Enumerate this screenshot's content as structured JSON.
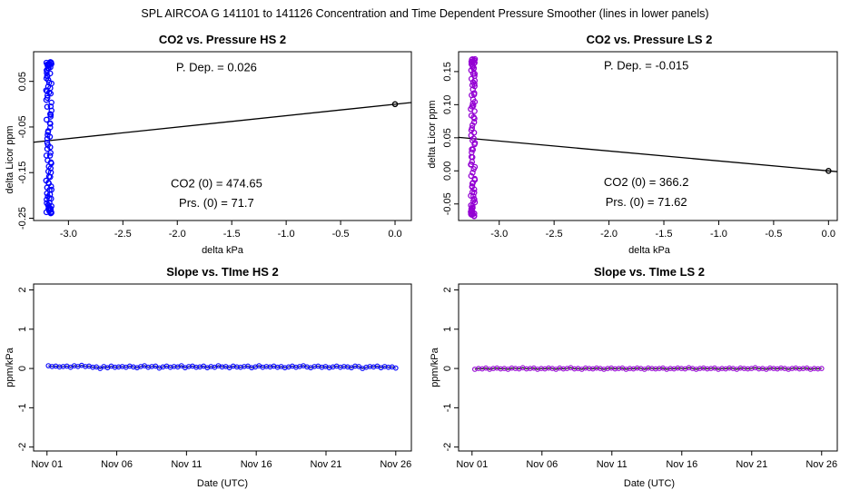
{
  "suptitle": "SPL   AIRCOA G   141101 to 141126   Concentration and Time Dependent Pressure Smoother (lines in lower panels)",
  "chart_data": [
    {
      "id": "p1",
      "type": "scatter",
      "title": "CO2 vs. Pressure HS 2",
      "xlabel": "delta kPa",
      "ylabel": "delta Licor ppm",
      "xlim": [
        -3.32,
        0.15
      ],
      "ylim": [
        -0.255,
        0.115
      ],
      "xticks": [
        -3.0,
        -2.5,
        -2.0,
        -1.5,
        -1.0,
        -0.5,
        0.0
      ],
      "xtick_labels": [
        "-3.0",
        "-2.5",
        "-2.0",
        "-1.5",
        "-1.0",
        "-0.5",
        "0.0"
      ],
      "yticks": [
        -0.25,
        -0.15,
        -0.05,
        0.05
      ],
      "ytick_labels": [
        "-0.25",
        "-0.15",
        "-0.05",
        "0.05"
      ],
      "point_color": "#0000ff",
      "fit_line": {
        "color": "#000000",
        "x": [
          -3.32,
          0.15
        ],
        "y": [
          -0.0834,
          0.0036
        ]
      },
      "origin_point": {
        "x": 0.0,
        "y": 0.0
      },
      "cluster": {
        "x_center": -3.18,
        "x_spread": 0.025,
        "y_min": -0.24,
        "y_max": 0.095,
        "count": 95
      },
      "annotations": {
        "p_dep": "P. Dep. =  0.026",
        "co2_0": "CO2 (0) =  474.65",
        "prs_0": "Prs. (0) = 71.7"
      },
      "annotation_anchor": {
        "p_dep": [
          -1.64,
          0.072
        ],
        "co2_0": [
          -1.64,
          -0.182
        ],
        "prs_0": [
          -1.64,
          -0.225
        ]
      }
    },
    {
      "id": "p2",
      "type": "scatter",
      "title": "CO2 vs. Pressure LS 2",
      "xlabel": "delta kPa",
      "ylabel": "delta Licor ppm",
      "xlim": [
        -3.37,
        0.08
      ],
      "ylim": [
        -0.075,
        0.18
      ],
      "xticks": [
        -3.0,
        -2.5,
        -2.0,
        -1.5,
        -1.0,
        -0.5,
        0.0
      ],
      "xtick_labels": [
        "-3.0",
        "-2.5",
        "-2.0",
        "-1.5",
        "-1.0",
        "-0.5",
        "0.0"
      ],
      "yticks": [
        -0.05,
        0.0,
        0.05,
        0.1,
        0.15
      ],
      "ytick_labels": [
        "-0.05",
        "0.00",
        "0.05",
        "0.10",
        "0.15"
      ],
      "point_color": "#9400d3",
      "fit_line": {
        "color": "#000000",
        "x": [
          -3.37,
          0.08
        ],
        "y": [
          0.0506,
          -0.0012
        ]
      },
      "origin_point": {
        "x": 0.0,
        "y": 0.0
      },
      "cluster": {
        "x_center": -3.24,
        "x_spread": 0.02,
        "y_min": -0.07,
        "y_max": 0.17,
        "count": 95
      },
      "annotations": {
        "p_dep": "P. Dep. =  -0.015",
        "co2_0": "CO2 (0) =  366.2",
        "prs_0": "Prs. (0) = 71.62"
      },
      "annotation_anchor": {
        "p_dep": [
          -1.66,
          0.153
        ],
        "co2_0": [
          -1.66,
          -0.023
        ],
        "prs_0": [
          -1.66,
          -0.053
        ]
      }
    },
    {
      "id": "p3",
      "type": "line",
      "title": "Slope vs. TIme HS 2",
      "xlabel": "Date (UTC)",
      "ylabel": "ppm/kPa",
      "xlim": [
        -0.96,
        26.12
      ],
      "ylim": [
        -2.1,
        2.15
      ],
      "xticks": [
        0,
        5,
        10,
        15,
        20,
        25
      ],
      "xtick_labels": [
        "Nov 01",
        "Nov 06",
        "Nov 11",
        "Nov 16",
        "Nov 21",
        "Nov 26"
      ],
      "yticks": [
        -2,
        -1,
        0,
        1,
        2
      ],
      "ytick_labels": [
        "-2",
        "-1",
        "0",
        "1",
        "2"
      ],
      "point_color": "#0000ff",
      "line_color": "#000080",
      "x_range": [
        0.1,
        25.0
      ],
      "values": [
        0.07,
        0.05,
        0.06,
        0.04,
        0.05,
        0.06,
        0.03,
        0.07,
        0.05,
        0.08,
        0.05,
        0.06,
        0.03,
        0.04,
        0.0,
        0.05,
        0.02,
        0.06,
        0.03,
        0.04,
        0.05,
        0.03,
        0.06,
        0.04,
        0.02,
        0.05,
        0.07,
        0.03,
        0.05,
        0.06,
        0.01,
        0.04,
        0.06,
        0.03,
        0.05,
        0.04,
        0.07,
        0.02,
        0.05,
        0.06,
        0.03,
        0.04,
        0.06,
        0.02,
        0.05,
        0.03,
        0.07,
        0.04,
        0.05,
        0.02,
        0.06,
        0.04,
        0.03,
        0.05,
        0.06,
        0.02,
        0.04,
        0.07,
        0.03,
        0.05,
        0.04,
        0.06,
        0.03,
        0.05,
        0.02,
        0.04,
        0.06,
        0.03,
        0.05,
        0.07,
        0.04,
        0.02,
        0.05,
        0.06,
        0.03,
        0.05,
        0.02,
        0.04,
        0.06,
        0.03,
        0.05,
        0.04,
        0.02,
        0.06,
        0.05,
        0.0,
        0.03,
        0.05,
        0.04,
        0.06,
        0.02,
        0.05,
        0.03,
        0.04,
        0.01
      ]
    },
    {
      "id": "p4",
      "type": "line",
      "title": "Slope vs. TIme LS 2",
      "xlabel": "Date (UTC)",
      "ylabel": "ppm/kPa",
      "xlim": [
        -0.96,
        26.12
      ],
      "ylim": [
        -2.1,
        2.15
      ],
      "xticks": [
        0,
        5,
        10,
        15,
        20,
        25
      ],
      "xtick_labels": [
        "Nov 01",
        "Nov 06",
        "Nov 11",
        "Nov 16",
        "Nov 21",
        "Nov 26"
      ],
      "yticks": [
        -2,
        -1,
        0,
        1,
        2
      ],
      "ytick_labels": [
        "-2",
        "-1",
        "0",
        "1",
        "2"
      ],
      "point_color": "#9400d3",
      "line_color": "#000000",
      "x_range": [
        0.2,
        25.0
      ],
      "values": [
        -0.02,
        0.0,
        -0.01,
        0.01,
        -0.02,
        0.0,
        0.01,
        -0.01,
        0.0,
        -0.02,
        0.01,
        0.0,
        -0.01,
        0.02,
        -0.01,
        0.0,
        0.01,
        -0.02,
        0.0,
        -0.01,
        0.01,
        0.0,
        -0.02,
        0.01,
        -0.01,
        0.0,
        0.02,
        -0.01,
        0.0,
        -0.02,
        0.01,
        0.0,
        -0.01,
        0.01,
        0.0,
        -0.02,
        0.0,
        0.01,
        -0.01,
        0.0,
        0.01,
        -0.02,
        0.0,
        -0.01,
        0.01,
        0.0,
        -0.02,
        0.01,
        0.0,
        -0.01,
        0.0,
        0.01,
        -0.02,
        0.0,
        -0.01,
        0.01,
        0.0,
        -0.01,
        0.02,
        0.0,
        -0.02,
        0.0,
        0.01,
        -0.01,
        0.0,
        0.01,
        -0.02,
        0.0,
        -0.01,
        0.01,
        0.0,
        -0.02,
        0.01,
        0.0,
        -0.01,
        0.0,
        0.02,
        -0.01,
        0.0,
        -0.02,
        0.01,
        0.0,
        -0.01,
        0.01,
        0.0,
        -0.02,
        0.0,
        0.01,
        -0.01,
        0.0,
        0.01,
        -0.02,
        0.0,
        -0.01,
        0.0
      ]
    }
  ]
}
